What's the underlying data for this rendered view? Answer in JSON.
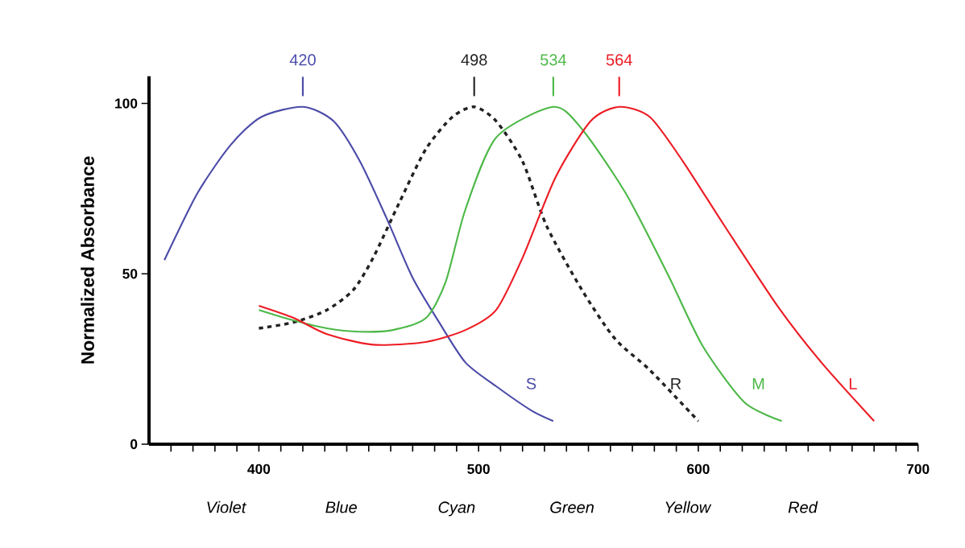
{
  "chart_data": {
    "type": "line",
    "ylabel": "Normalized Absorbance",
    "xlim": [
      350,
      700
    ],
    "ylim": [
      0,
      108
    ],
    "xticks": [
      {
        "value": 360,
        "label": null
      },
      {
        "value": 370,
        "label": null
      },
      {
        "value": 380,
        "label": null
      },
      {
        "value": 390,
        "label": null
      },
      400,
      {
        "value": 410,
        "label": null
      },
      {
        "value": 420,
        "label": null
      },
      {
        "value": 430,
        "label": null
      },
      {
        "value": 440,
        "label": null
      },
      {
        "value": 450,
        "label": null
      },
      {
        "value": 460,
        "label": null
      },
      {
        "value": 470,
        "label": null
      },
      {
        "value": 480,
        "label": null
      },
      {
        "value": 490,
        "label": null
      },
      500,
      {
        "value": 510,
        "label": null
      },
      {
        "value": 520,
        "label": null
      },
      {
        "value": 530,
        "label": null
      },
      {
        "value": 540,
        "label": null
      },
      {
        "value": 550,
        "label": null
      },
      {
        "value": 560,
        "label": null
      },
      {
        "value": 570,
        "label": null
      },
      {
        "value": 580,
        "label": null
      },
      {
        "value": 590,
        "label": null
      },
      600,
      {
        "value": 610,
        "label": null
      },
      {
        "value": 620,
        "label": null
      },
      {
        "value": 630,
        "label": null
      },
      {
        "value": 640,
        "label": null
      },
      {
        "value": 650,
        "label": null
      },
      {
        "value": 660,
        "label": null
      },
      {
        "value": 670,
        "label": null
      },
      {
        "value": 680,
        "label": null
      },
      {
        "value": 690,
        "label": null
      },
      700
    ],
    "yticks": [
      0,
      50,
      100
    ],
    "marker": "none",
    "series": [
      {
        "name": "S",
        "color": "#4b4ba8",
        "x": [
          357,
          372,
          387,
          401,
          420,
          434,
          446,
          458,
          470,
          482,
          494,
          508,
          524,
          534
        ],
        "values": [
          54,
          73.6,
          87.7,
          96,
          99,
          94.8,
          83,
          66.5,
          48.8,
          35.8,
          24,
          17,
          9.9,
          6.8
        ]
      },
      {
        "name": "R",
        "color": "#222222",
        "line_style": "dashed",
        "x": [
          400,
          416,
          431,
          443,
          452,
          464,
          476,
          488,
          498,
          508,
          520,
          531,
          547,
          562,
          578,
          600
        ],
        "values": [
          34,
          35.8,
          39.4,
          45.3,
          54.7,
          71,
          86.6,
          96,
          99,
          94.8,
          83,
          64,
          45.3,
          31,
          21.7,
          6.8
        ]
      },
      {
        "name": "M",
        "color": "#4db848",
        "x": [
          400,
          416,
          431,
          446,
          461,
          476,
          485,
          494,
          508,
          534,
          547,
          567,
          586,
          602,
          621,
          638
        ],
        "values": [
          39.4,
          36.3,
          34,
          33,
          33.5,
          37,
          47.6,
          68.9,
          90,
          99,
          92.5,
          73.6,
          50,
          28.8,
          12.3,
          6.8
        ]
      },
      {
        "name": "L",
        "color": "#ec1c24",
        "x": [
          400,
          416,
          431,
          452,
          476,
          494,
          508,
          520,
          535,
          551,
          564,
          578,
          593,
          612,
          636,
          656,
          680
        ],
        "values": [
          40.6,
          37,
          32.3,
          29.2,
          30,
          33.5,
          39.4,
          54.7,
          78.3,
          94.8,
          99,
          96,
          83,
          64,
          40.6,
          24,
          6.8
        ]
      }
    ],
    "annotations": [
      {
        "text": "420",
        "x": 420,
        "y": 99
      },
      {
        "text": "498",
        "x": 498,
        "y": 99
      },
      {
        "text": "534",
        "x": 534,
        "y": 99
      },
      {
        "text": "564",
        "x": 564,
        "y": 99
      },
      "Violet",
      "Blue",
      "Cyan",
      "Green",
      "Yellow",
      "Red"
    ]
  }
}
